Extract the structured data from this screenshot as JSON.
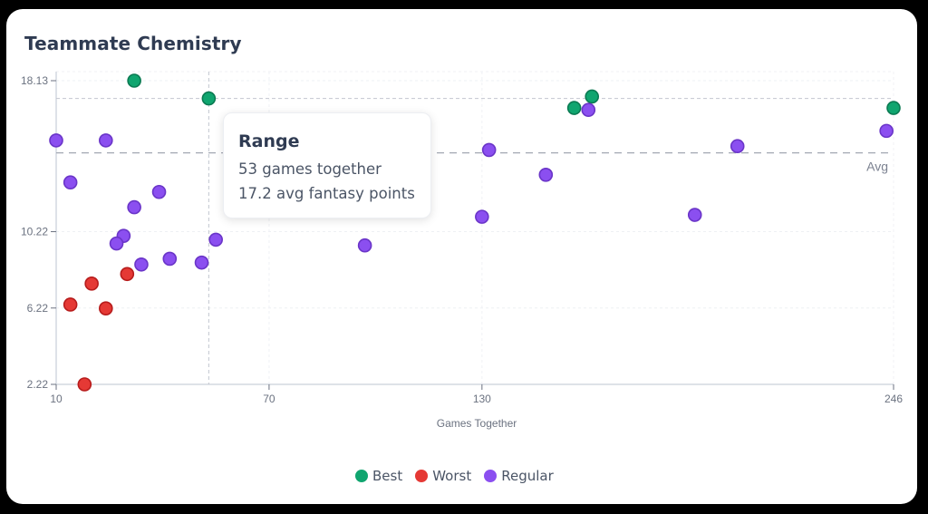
{
  "card": {
    "title": "Teammate Chemistry"
  },
  "tooltip": {
    "title": "Range",
    "line1": "53 games together",
    "line2": "17.2 avg fantasy points"
  },
  "legend": [
    {
      "label": "Best",
      "color": "#10a56f"
    },
    {
      "label": "Worst",
      "color": "#e53935"
    },
    {
      "label": "Regular",
      "color": "#8b4ff0"
    }
  ],
  "chart_data": {
    "type": "scatter",
    "title": "Teammate Chemistry",
    "xlabel": "Games Together",
    "ylabel": "",
    "xlim": [
      10,
      246
    ],
    "ylim": [
      2.22,
      18.13
    ],
    "x_ticks": [
      10,
      70,
      130,
      246
    ],
    "y_ticks": [
      2.22,
      6.22,
      10.22,
      18.13
    ],
    "avg_line": {
      "label": "Avg",
      "y": 14.35
    },
    "crosshair": {
      "x": 53,
      "y": 17.2
    },
    "grid": true,
    "legend_position": "bottom",
    "series": [
      {
        "name": "Best",
        "color": "#10a56f",
        "points": [
          {
            "x": 32,
            "y": 18.13
          },
          {
            "x": 53,
            "y": 17.2
          },
          {
            "x": 156,
            "y": 16.7
          },
          {
            "x": 161,
            "y": 17.3
          },
          {
            "x": 246,
            "y": 16.7
          }
        ]
      },
      {
        "name": "Worst",
        "color": "#e53935",
        "points": [
          {
            "x": 14,
            "y": 6.4
          },
          {
            "x": 20,
            "y": 7.5
          },
          {
            "x": 24,
            "y": 6.2
          },
          {
            "x": 30,
            "y": 8.0
          },
          {
            "x": 18,
            "y": 2.22
          }
        ]
      },
      {
        "name": "Regular",
        "color": "#8b4ff0",
        "points": [
          {
            "x": 10,
            "y": 15.0
          },
          {
            "x": 24,
            "y": 15.0
          },
          {
            "x": 14,
            "y": 12.8
          },
          {
            "x": 32,
            "y": 11.5
          },
          {
            "x": 39,
            "y": 12.3
          },
          {
            "x": 29,
            "y": 10.0
          },
          {
            "x": 27,
            "y": 9.6
          },
          {
            "x": 34,
            "y": 8.5
          },
          {
            "x": 42,
            "y": 8.8
          },
          {
            "x": 51,
            "y": 8.6
          },
          {
            "x": 55,
            "y": 9.8
          },
          {
            "x": 97,
            "y": 9.5
          },
          {
            "x": 132,
            "y": 14.5
          },
          {
            "x": 130,
            "y": 11.0
          },
          {
            "x": 148,
            "y": 13.2
          },
          {
            "x": 160,
            "y": 16.6
          },
          {
            "x": 190,
            "y": 11.1
          },
          {
            "x": 202,
            "y": 14.7
          },
          {
            "x": 244,
            "y": 15.5
          }
        ]
      }
    ]
  }
}
